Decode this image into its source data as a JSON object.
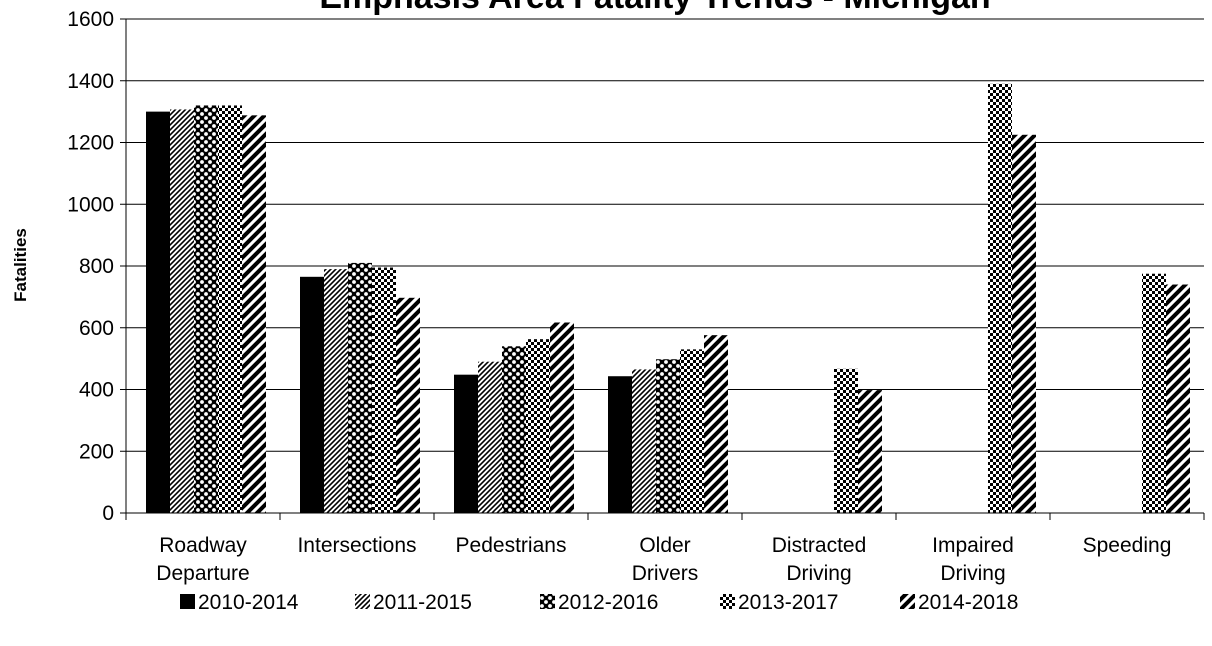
{
  "chart_data": {
    "type": "bar",
    "title": "Emphasis Area Fatality Trends - Michigan",
    "ylabel": "Fatalities",
    "xlabel": "",
    "ylim": [
      0,
      1600
    ],
    "yticks": [
      0,
      200,
      400,
      600,
      800,
      1000,
      1200,
      1400,
      1600
    ],
    "grid": true,
    "legend": "bottom",
    "categories": [
      [
        "Roadway",
        "Departure"
      ],
      [
        "Intersections"
      ],
      [
        "Pedestrians"
      ],
      [
        "Older",
        "Drivers"
      ],
      [
        "Distracted",
        "Driving"
      ],
      [
        "Impaired",
        "Driving"
      ],
      [
        "Speeding"
      ]
    ],
    "series": [
      {
        "name": "2010-2014",
        "pattern": "solid",
        "values": [
          1300,
          765,
          448,
          443,
          null,
          null,
          null
        ]
      },
      {
        "name": "2011-2015",
        "pattern": "diagonal-fine",
        "values": [
          1307,
          790,
          490,
          465,
          null,
          null,
          null
        ]
      },
      {
        "name": "2012-2016",
        "pattern": "dots",
        "values": [
          1320,
          810,
          540,
          498,
          null,
          null,
          null
        ]
      },
      {
        "name": "2013-2017",
        "pattern": "checker",
        "values": [
          1320,
          795,
          563,
          530,
          467,
          1390,
          775
        ]
      },
      {
        "name": "2014-2018",
        "pattern": "diagonal-wide",
        "values": [
          1288,
          697,
          617,
          576,
          398,
          1225,
          740
        ]
      }
    ]
  }
}
